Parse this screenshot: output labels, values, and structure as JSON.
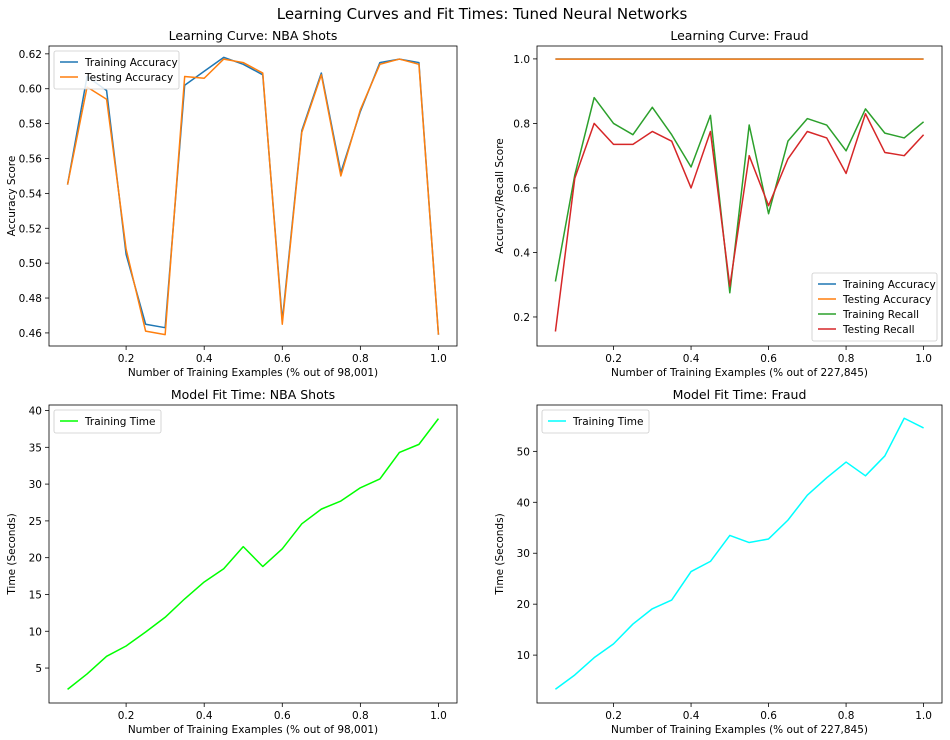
{
  "figure_title": "Learning Curves and Fit Times: Tuned Neural Networks",
  "chart_data": [
    {
      "type": "line",
      "title": "Learning Curve: NBA Shots",
      "xlabel": "Number of Training Examples (% out of 98,001)",
      "ylabel": "Accuracy Score",
      "xlim": [
        0.0025,
        1.0475
      ],
      "ylim": [
        0.4525,
        0.6245
      ],
      "xticks": [
        0.2,
        0.4,
        0.6,
        0.8,
        1.0
      ],
      "xtick_labels": [
        "0.2",
        "0.4",
        "0.6",
        "0.8",
        "1.0"
      ],
      "yticks": [
        0.46,
        0.48,
        0.5,
        0.52,
        0.54,
        0.56,
        0.58,
        0.6,
        0.62
      ],
      "ytick_labels": [
        "0.46",
        "0.48",
        "0.50",
        "0.52",
        "0.54",
        "0.56",
        "0.58",
        "0.60",
        "0.62"
      ],
      "grid": false,
      "legend_position": "top-left",
      "x": [
        0.05,
        0.1,
        0.15,
        0.2,
        0.25,
        0.3,
        0.35,
        0.4,
        0.45,
        0.5,
        0.55,
        0.6,
        0.65,
        0.7,
        0.75,
        0.8,
        0.85,
        0.9,
        0.95,
        1.0
      ],
      "series": [
        {
          "name": "Training Accuracy",
          "color": "#1f77b4",
          "values": [
            0.545,
            0.607,
            0.599,
            0.505,
            0.465,
            0.463,
            0.602,
            0.61,
            0.618,
            0.614,
            0.608,
            0.467,
            0.576,
            0.609,
            0.552,
            0.587,
            0.615,
            0.617,
            0.615,
            0.459
          ]
        },
        {
          "name": "Testing Accuracy",
          "color": "#ff7f0e",
          "values": [
            0.545,
            0.601,
            0.594,
            0.508,
            0.461,
            0.459,
            0.607,
            0.606,
            0.617,
            0.615,
            0.609,
            0.465,
            0.575,
            0.608,
            0.55,
            0.588,
            0.614,
            0.617,
            0.614,
            0.459
          ]
        }
      ]
    },
    {
      "type": "line",
      "title": "Learning Curve: Fraud",
      "xlabel": "Number of Training Examples (% out of 227,845)",
      "ylabel": "Accuracy/Recall Score",
      "xlim": [
        0.0025,
        1.0475
      ],
      "ylim": [
        0.11,
        1.04
      ],
      "xticks": [
        0.2,
        0.4,
        0.6,
        0.8,
        1.0
      ],
      "xtick_labels": [
        "0.2",
        "0.4",
        "0.6",
        "0.8",
        "1.0"
      ],
      "yticks": [
        0.2,
        0.4,
        0.6,
        0.8,
        1.0
      ],
      "ytick_labels": [
        "0.2",
        "0.4",
        "0.6",
        "0.8",
        "1.0"
      ],
      "grid": false,
      "legend_position": "bottom-right",
      "x": [
        0.05,
        0.1,
        0.15,
        0.2,
        0.25,
        0.3,
        0.35,
        0.4,
        0.45,
        0.5,
        0.55,
        0.6,
        0.65,
        0.7,
        0.75,
        0.8,
        0.85,
        0.9,
        0.95,
        1.0
      ],
      "series": [
        {
          "name": "Training Accuracy",
          "color": "#1f77b4",
          "values": [
            0.9995,
            0.9995,
            0.9995,
            0.9995,
            0.9995,
            0.9995,
            0.9995,
            0.9995,
            0.9995,
            0.9995,
            0.9995,
            0.9995,
            0.9995,
            0.9995,
            0.9995,
            0.9995,
            0.9995,
            0.9995,
            0.9995,
            0.9995
          ]
        },
        {
          "name": "Testing Accuracy",
          "color": "#ff7f0e",
          "values": [
            0.9993,
            0.9993,
            0.9993,
            0.9993,
            0.9993,
            0.9993,
            0.9993,
            0.9993,
            0.9993,
            0.9993,
            0.9993,
            0.9993,
            0.9993,
            0.9993,
            0.9993,
            0.9993,
            0.9993,
            0.9993,
            0.9993,
            0.9993
          ]
        },
        {
          "name": "Training Recall",
          "color": "#2ca02c",
          "values": [
            0.31,
            0.64,
            0.88,
            0.8,
            0.765,
            0.85,
            0.765,
            0.665,
            0.825,
            0.275,
            0.795,
            0.52,
            0.745,
            0.815,
            0.795,
            0.715,
            0.845,
            0.77,
            0.755,
            0.805
          ]
        },
        {
          "name": "Testing Recall",
          "color": "#d62728",
          "values": [
            0.155,
            0.63,
            0.8,
            0.735,
            0.735,
            0.775,
            0.745,
            0.6,
            0.775,
            0.295,
            0.7,
            0.545,
            0.69,
            0.775,
            0.755,
            0.645,
            0.83,
            0.71,
            0.7,
            0.765
          ]
        }
      ]
    },
    {
      "type": "line",
      "title": "Model Fit Time: NBA Shots",
      "xlabel": "Number of Training Examples (% out of 98,001)",
      "ylabel": "Time (Seconds)",
      "xlim": [
        0.0025,
        1.0475
      ],
      "ylim": [
        0.25,
        40.75
      ],
      "xticks": [
        0.2,
        0.4,
        0.6,
        0.8,
        1.0
      ],
      "xtick_labels": [
        "0.2",
        "0.4",
        "0.6",
        "0.8",
        "1.0"
      ],
      "yticks": [
        5,
        10,
        15,
        20,
        25,
        30,
        35,
        40
      ],
      "ytick_labels": [
        "5",
        "10",
        "15",
        "20",
        "25",
        "30",
        "35",
        "40"
      ],
      "grid": false,
      "legend_position": "top-left",
      "x": [
        0.05,
        0.1,
        0.15,
        0.2,
        0.25,
        0.3,
        0.35,
        0.4,
        0.45,
        0.5,
        0.55,
        0.6,
        0.65,
        0.7,
        0.75,
        0.8,
        0.85,
        0.9,
        0.95,
        1.0
      ],
      "series": [
        {
          "name": "Training Time",
          "color": "#00ff00",
          "values": [
            2.1,
            4.2,
            6.6,
            8.0,
            9.9,
            11.9,
            14.4,
            16.7,
            18.5,
            21.5,
            18.8,
            21.2,
            24.6,
            26.6,
            27.7,
            29.5,
            30.7,
            34.3,
            35.4,
            38.9
          ]
        }
      ]
    },
    {
      "type": "line",
      "title": "Model Fit Time: Fraud",
      "xlabel": "Number of Training Examples (% out of 227,845)",
      "ylabel": "Time (Seconds)",
      "xlim": [
        0.0025,
        1.0475
      ],
      "ylim": [
        0.6,
        59.1
      ],
      "xticks": [
        0.2,
        0.4,
        0.6,
        0.8,
        1.0
      ],
      "xtick_labels": [
        "0.2",
        "0.4",
        "0.6",
        "0.8",
        "1.0"
      ],
      "yticks": [
        10,
        20,
        30,
        40,
        50
      ],
      "ytick_labels": [
        "10",
        "20",
        "30",
        "40",
        "50"
      ],
      "grid": false,
      "legend_position": "top-left",
      "x": [
        0.05,
        0.1,
        0.15,
        0.2,
        0.25,
        0.3,
        0.35,
        0.4,
        0.45,
        0.5,
        0.55,
        0.6,
        0.65,
        0.7,
        0.75,
        0.8,
        0.85,
        0.9,
        0.95,
        1.0
      ],
      "series": [
        {
          "name": "Training Time",
          "color": "#00ffff",
          "values": [
            3.3,
            6.1,
            9.5,
            12.2,
            16.1,
            19.1,
            20.8,
            26.4,
            28.4,
            33.5,
            32.1,
            32.8,
            36.5,
            41.4,
            44.8,
            47.9,
            45.2,
            49.1,
            56.5,
            54.6
          ]
        }
      ]
    }
  ]
}
